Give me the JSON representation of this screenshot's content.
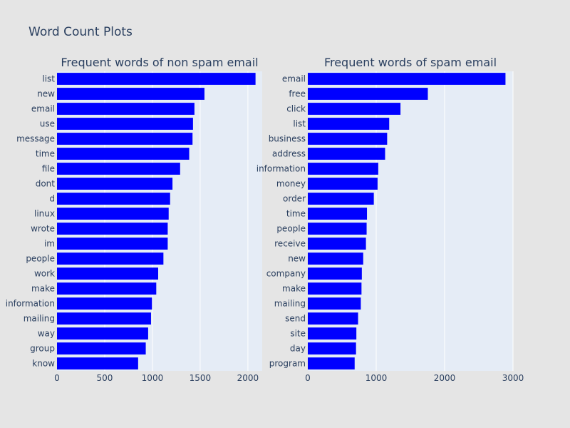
{
  "figure": {
    "title": "Word Count Plots"
  },
  "colors": {
    "background": "#e5e5e5",
    "plot_bg": "#e5ecf6",
    "bar": "#0000ff",
    "grid": "#ffffff",
    "text": "#2a3f5f"
  },
  "chart_data": [
    {
      "type": "bar",
      "orientation": "horizontal",
      "title": "Frequent words of non spam email",
      "categories": [
        "list",
        "new",
        "email",
        "use",
        "message",
        "time",
        "file",
        "dont",
        "d",
        "linux",
        "wrote",
        "im",
        "people",
        "work",
        "make",
        "information",
        "mailing",
        "way",
        "group",
        "know"
      ],
      "values": [
        2080,
        1545,
        1440,
        1425,
        1420,
        1385,
        1290,
        1210,
        1185,
        1170,
        1160,
        1160,
        1115,
        1060,
        1040,
        995,
        985,
        955,
        930,
        850
      ],
      "xlim": [
        0,
        2150
      ],
      "xticks": [
        0,
        500,
        1000,
        1500,
        2000
      ],
      "xticklabels": [
        "0",
        "500",
        "1000",
        "1500",
        "2000"
      ],
      "grid": true
    },
    {
      "type": "bar",
      "orientation": "horizontal",
      "title": "Frequent words of spam email",
      "categories": [
        "email",
        "free",
        "click",
        "list",
        "business",
        "address",
        "information",
        "money",
        "order",
        "time",
        "people",
        "receive",
        "new",
        "company",
        "make",
        "mailing",
        "send",
        "site",
        "day",
        "program"
      ],
      "values": [
        2890,
        1755,
        1355,
        1190,
        1160,
        1130,
        1030,
        1020,
        965,
        865,
        860,
        850,
        810,
        790,
        785,
        775,
        735,
        710,
        705,
        685
      ],
      "xlim": [
        0,
        3000
      ],
      "xticks": [
        0,
        1000,
        2000,
        3000
      ],
      "xticklabels": [
        "0",
        "1000",
        "2000",
        "3000"
      ],
      "grid": true
    }
  ]
}
